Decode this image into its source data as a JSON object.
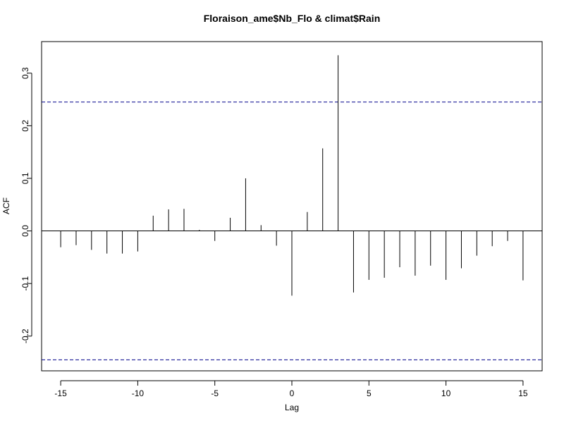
{
  "chart_data": {
    "type": "bar",
    "subtype": "ccf-spikes",
    "title": "Floraison_ame$Nb_Flo & climat$Rain",
    "xlabel": "Lag",
    "ylabel": "ACF",
    "x": [
      -15,
      -14,
      -13,
      -12,
      -11,
      -10,
      -9,
      -8,
      -7,
      -6,
      -5,
      -4,
      -3,
      -2,
      -1,
      0,
      1,
      2,
      3,
      4,
      5,
      6,
      7,
      8,
      9,
      10,
      11,
      12,
      13,
      14,
      15
    ],
    "values": [
      -0.031,
      -0.027,
      -0.036,
      -0.043,
      -0.043,
      -0.039,
      0.029,
      0.041,
      0.042,
      0.002,
      -0.019,
      0.025,
      0.1,
      0.011,
      -0.028,
      -0.123,
      0.036,
      0.157,
      0.334,
      -0.117,
      -0.093,
      -0.089,
      -0.069,
      -0.085,
      -0.066,
      -0.093,
      -0.071,
      -0.047,
      -0.029,
      -0.019,
      -0.094
    ],
    "confidence_band": [
      -0.245,
      0.245
    ],
    "xlim": [
      -16.24,
      16.24
    ],
    "ylim": [
      -0.266,
      0.36
    ],
    "xticks": [
      -15,
      -10,
      -5,
      0,
      5,
      10,
      15
    ],
    "yticks": [
      -0.2,
      -0.1,
      0.0,
      0.1,
      0.2,
      0.3
    ],
    "ytick_labels": [
      "-0.2",
      "-0.1",
      "0.0",
      "0.1",
      "0.2",
      "0.3"
    ],
    "grid": false,
    "legend": "none",
    "colors": {
      "spike": "#000000",
      "band": "#00008b",
      "zero_line": "#000000"
    }
  }
}
